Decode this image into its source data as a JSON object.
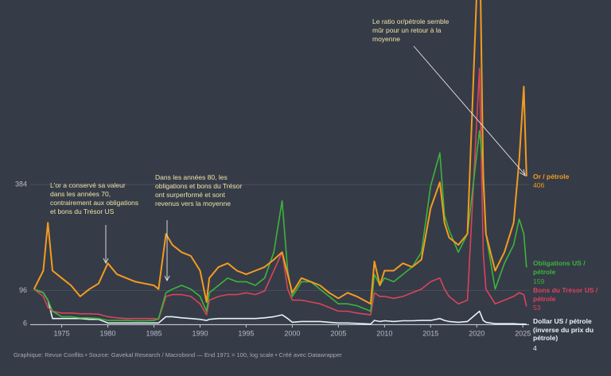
{
  "chart_data": {
    "type": "line",
    "note": "Graphique: Revue Conflits • Source: Gavekal Research / Macrobond — End 1971 = 100, log scale • Créé avec Datawrapper",
    "annotations": [
      "L'or a conservé sa valeur dans les années 70, contrairement aux obligations et bons du Trésor US",
      "Dans les années 80, les obligations et bons du Trésor ont surperformé et sont revenus vers la moyenne",
      "Le ratio or/pétrole semble mûr pour un retour à la moyenne"
    ],
    "x": [
      1972,
      1973,
      1973.5,
      1974,
      1975,
      1976,
      1977,
      1978,
      1979,
      1980,
      1981,
      1982,
      1983,
      1984,
      1985,
      1985.5,
      1986.3,
      1987,
      1988,
      1989,
      1990,
      1990.7,
      1991,
      1992,
      1993,
      1994,
      1995,
      1996,
      1997,
      1998,
      1998.9,
      1999.5,
      2000,
      2001,
      2002,
      2003,
      2004,
      2005,
      2006,
      2007,
      2008.5,
      2008.9,
      2009.5,
      2010,
      2011,
      2012,
      2013,
      2014,
      2015,
      2016,
      2016.5,
      2017,
      2018,
      2019,
      2020.3,
      2020.7,
      2021,
      2022,
      2023,
      2024,
      2024.6,
      2025.1,
      2025.4
    ],
    "series": [
      {
        "name": "Or / pétrole",
        "color": "#f39c1f",
        "values": [
          100,
          150,
          280,
          150,
          130,
          110,
          80,
          100,
          115,
          170,
          140,
          130,
          120,
          115,
          110,
          100,
          250,
          220,
          200,
          190,
          150,
          65,
          130,
          160,
          170,
          150,
          140,
          150,
          160,
          180,
          200,
          140,
          90,
          130,
          120,
          110,
          90,
          75,
          90,
          80,
          60,
          175,
          110,
          150,
          150,
          170,
          160,
          180,
          320,
          390,
          280,
          240,
          220,
          250,
          1100,
          400,
          250,
          150,
          200,
          280,
          450,
          650,
          406
        ]
      },
      {
        "name": "Obligations US / pétrole",
        "color": "#3bb53a",
        "values": [
          100,
          90,
          70,
          40,
          25,
          25,
          22,
          22,
          20,
          15,
          15,
          15,
          14,
          14,
          15,
          20,
          90,
          100,
          110,
          100,
          80,
          40,
          90,
          110,
          130,
          120,
          120,
          110,
          130,
          200,
          340,
          150,
          80,
          120,
          120,
          100,
          80,
          60,
          60,
          55,
          40,
          140,
          110,
          130,
          120,
          140,
          160,
          200,
          380,
          470,
          300,
          260,
          200,
          250,
          530,
          430,
          250,
          100,
          170,
          220,
          290,
          250,
          159
        ]
      },
      {
        "name": "Bons du Trésor US / pétrole",
        "color": "#da4459",
        "values": [
          100,
          80,
          50,
          40,
          35,
          35,
          33,
          33,
          32,
          25,
          22,
          20,
          20,
          20,
          20,
          18,
          80,
          85,
          85,
          80,
          60,
          30,
          70,
          80,
          85,
          85,
          90,
          85,
          95,
          150,
          200,
          100,
          70,
          70,
          65,
          60,
          50,
          40,
          40,
          35,
          30,
          90,
          80,
          80,
          75,
          80,
          90,
          100,
          120,
          130,
          100,
          80,
          60,
          70,
          700,
          200,
          100,
          60,
          70,
          80,
          90,
          85,
          53
        ]
      },
      {
        "name": "Dollar US / pétrole (inverse du prix du pétrole)",
        "color": "#e4f4f4",
        "values": [
          100,
          90,
          70,
          20,
          20,
          20,
          20,
          18,
          18,
          8,
          8,
          8,
          8,
          8,
          8,
          8,
          25,
          25,
          22,
          20,
          18,
          15,
          18,
          20,
          20,
          20,
          20,
          20,
          22,
          25,
          30,
          20,
          10,
          12,
          12,
          12,
          10,
          8,
          8,
          7,
          5,
          15,
          12,
          14,
          12,
          14,
          14,
          15,
          15,
          20,
          15,
          12,
          10,
          12,
          40,
          15,
          10,
          6,
          6,
          6,
          5,
          5,
          4
        ]
      }
    ],
    "xlim": [
      1972,
      2025.5
    ],
    "xticks": [
      1975,
      1980,
      1985,
      1990,
      1995,
      2000,
      2005,
      2010,
      2015,
      2020,
      2025
    ],
    "ylim": [
      0,
      885
    ],
    "yticks": [
      6,
      96,
      384
    ],
    "grid": true
  }
}
